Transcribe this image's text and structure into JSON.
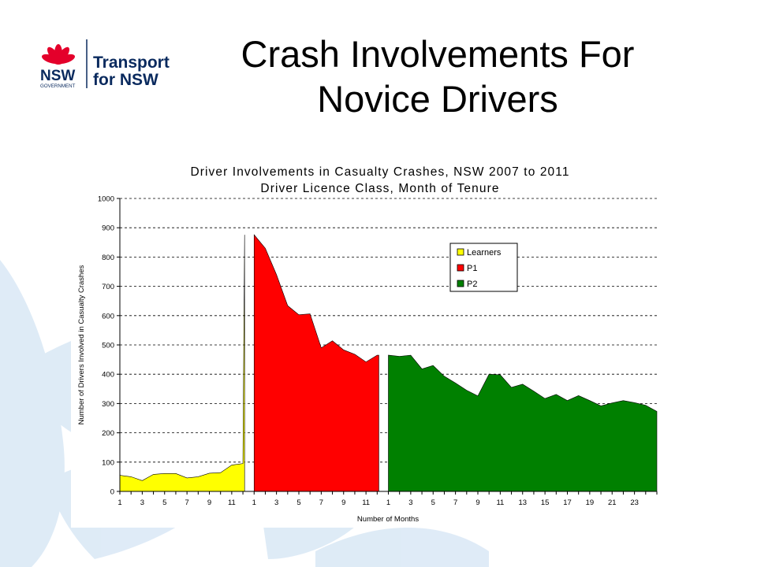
{
  "slide": {
    "title_line1": "Crash Involvements For",
    "title_line2": "Novice Drivers"
  },
  "logo": {
    "emblem": "waratah-flower-icon",
    "gov_word": "NSW",
    "gov_sub": "GOVERNMENT",
    "brand_line1": "Transport",
    "brand_line2": "for NSW",
    "colors": {
      "red": "#e4002b",
      "navy": "#0a2a5e"
    }
  },
  "colors": {
    "background_shapes": "#dbe9f6"
  },
  "chart_data": {
    "type": "area",
    "title_line1": "Driver Involvements in Casualty Crashes, NSW 2007 to 2011",
    "title_line2": "Driver Licence Class, Month of Tenure",
    "xlabel": "Number of Months",
    "ylabel": "Number of Drivers Involved in Casualty Crashes",
    "ylim": [
      0,
      1000
    ],
    "yticks": [
      "0",
      "100",
      "200",
      "300",
      "400",
      "500",
      "600",
      "700",
      "800",
      "900",
      "1000"
    ],
    "grid": "horizontal-dashed",
    "legend_position": "top-right",
    "x_tick_labels": [
      "1",
      "3",
      "5",
      "7",
      "9",
      "11",
      "1",
      "3",
      "5",
      "7",
      "9",
      "11",
      "1",
      "3",
      "5",
      "7",
      "9",
      "11",
      "13",
      "15",
      "17",
      "19",
      "21",
      "23"
    ],
    "series": [
      {
        "name": "Learners",
        "color": "#ffff00",
        "values": [
          55,
          50,
          37,
          58,
          61,
          61,
          46,
          50,
          62,
          64,
          90,
          95
        ]
      },
      {
        "name": "P1",
        "color": "#ff0000",
        "values": [
          876,
          830,
          740,
          634,
          603,
          606,
          490,
          514,
          483,
          468,
          442,
          465
        ]
      },
      {
        "name": "P2",
        "color": "#008000",
        "values": [
          465,
          461,
          465,
          418,
          430,
          393,
          370,
          345,
          326,
          400,
          398,
          355,
          366,
          342,
          317,
          331,
          310,
          327,
          310,
          292,
          302,
          310,
          303,
          294,
          273
        ]
      }
    ]
  }
}
